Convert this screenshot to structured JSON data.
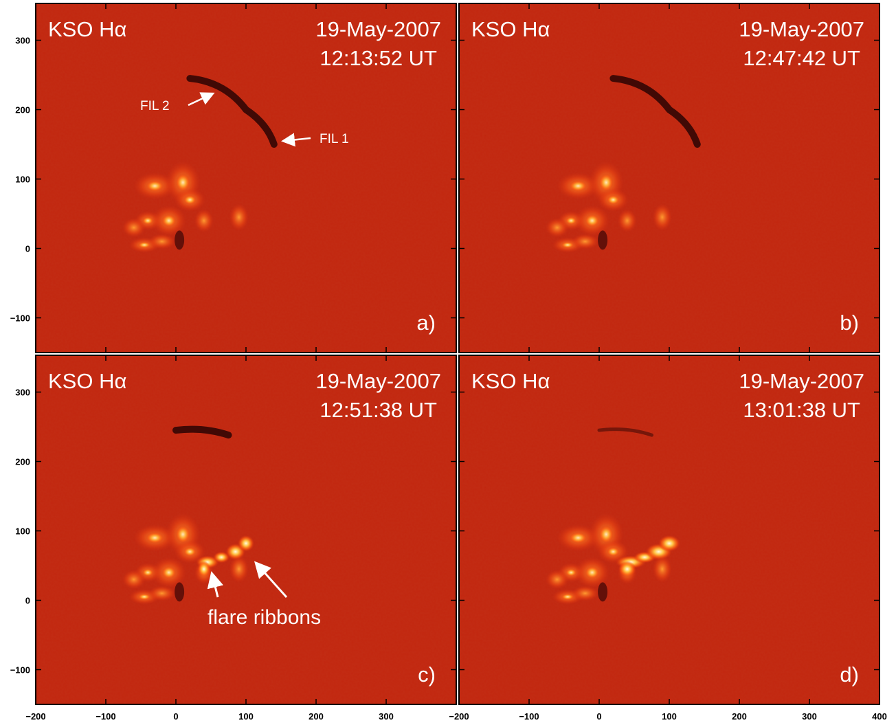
{
  "panels": [
    {
      "title": "KSO Hα",
      "date": "19-May-2007",
      "time": "12:13:52 UT",
      "label": "a)",
      "annotations": [
        "FIL 2",
        "FIL 1"
      ]
    },
    {
      "title": "KSO Hα",
      "date": "19-May-2007",
      "time": "12:47:42 UT",
      "label": "b)"
    },
    {
      "title": "KSO Hα",
      "date": "19-May-2007",
      "time": "12:51:38 UT",
      "label": "c)",
      "annotations": [
        "flare ribbons"
      ]
    },
    {
      "title": "KSO Hα",
      "date": "19-May-2007",
      "time": "13:01:38 UT",
      "label": "d)"
    }
  ],
  "axes": {
    "xlim": [
      -200,
      400
    ],
    "ylim": [
      -150,
      353
    ],
    "xticks": [
      {
        "value": -200,
        "label": "−200"
      },
      {
        "value": -100,
        "label": "−100"
      },
      0,
      100,
      200,
      300,
      400
    ],
    "yticks": [
      {
        "value": -100,
        "label": "−100"
      },
      0,
      100,
      200,
      300
    ]
  }
}
